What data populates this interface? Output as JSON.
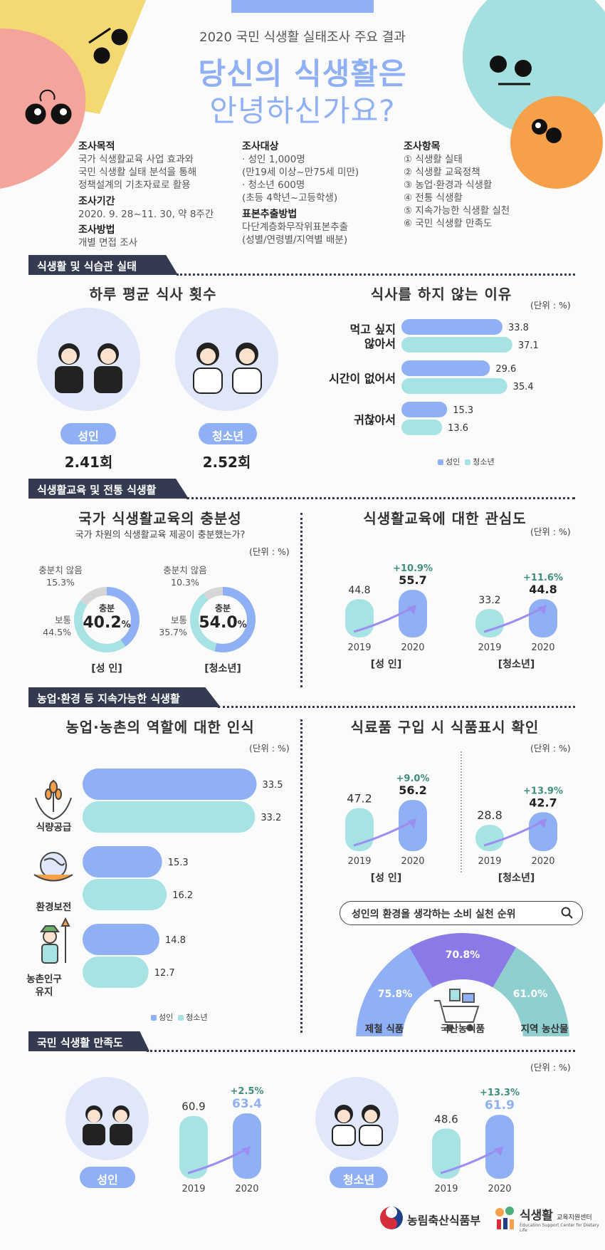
{
  "header": {
    "subtitle": "2020 국민 식생활 실태조사 주요 결과",
    "title_line1": "당신의 식생활은",
    "title_line2": "안녕하신가요?"
  },
  "info": {
    "purpose_h": "조사목적",
    "purpose_1": "국가 식생활교육 사업 효과와",
    "purpose_2": "국민 식생활 실태 분석을 통해",
    "purpose_3": "정책설계의 기초자료로 활용",
    "period_h": "조사기간",
    "period": "2020. 9. 28~11. 30, 약 8주간",
    "method_h": "조사방법",
    "method": "개별 면접 조사",
    "target_h": "조사대상",
    "target_1": "· 성인 1,000명",
    "target_2": "(만19세 이상~만75세 미만)",
    "target_3": "· 청소년 600명",
    "target_4": "(초등 4학년~고등학생)",
    "sampling_h": "표본추출방법",
    "sampling_1": "다단계층화무작위표본추출",
    "sampling_2": "(성별/연령별/지역별 배분)",
    "items_h": "조사항목",
    "items": [
      "① 식생활 실태",
      "② 식생활 교육정책",
      "③ 농업·환경과 식생활",
      "④ 전통 식생활",
      "⑤ 지속가능한 식생활 실천",
      "⑥ 국민 식생활 만족도"
    ]
  },
  "sections": {
    "s1": "식생활 및 식습관 실태",
    "s2": "식생활교육 및 전통 식생활",
    "s3": "농업·환경 등 지속가능한 식생활",
    "s4": "국민 식생활 만족도"
  },
  "unit": "(단위 : %)",
  "legend": {
    "adult": "성인",
    "youth": "청소년"
  },
  "meals": {
    "title": "하루 평균 식사 횟수",
    "adult_label": "성인",
    "adult_value": "2.41회",
    "youth_label": "청소년",
    "youth_value": "2.52회"
  },
  "edu_sufficiency": {
    "title": "국가 식생활교육의 충분성",
    "question": "국가 차원의 식생활교육 제공이 충분했는가?",
    "adult": {
      "group": "[성 인]",
      "insuf_label": "충분치 않음",
      "insuf": "15.3%",
      "normal_label": "보통",
      "normal": "44.5%",
      "suf_label": "충분",
      "suf": "40.2"
    },
    "youth": {
      "group": "[청소년]",
      "insuf_label": "충분치 않음",
      "insuf": "10.3%",
      "normal_label": "보통",
      "normal": "35.7%",
      "suf_label": "충분",
      "suf": "54.0"
    },
    "pct": "%"
  },
  "env_rank": {
    "title": "성인의 환경을 생각하는 소비 실천 순위",
    "items": [
      {
        "label": "제철 식품",
        "value": "75.8%"
      },
      {
        "label": "국산농식품",
        "value": "70.8%"
      },
      {
        "label": "지역 농산물",
        "value": "61.0%"
      }
    ]
  },
  "ag_roles": {
    "labels": [
      "식량공급",
      "환경보전",
      "농촌인구 유지"
    ]
  },
  "footer": {
    "ministry": "농림축산식품부",
    "center_main": "식생활",
    "center_sub": "교육지원센터",
    "center_en": "Education Support Center for Dietary Life"
  },
  "chart_data": [
    {
      "type": "bar",
      "id": "skip_reasons",
      "title": "식사를 하지 않는 이유",
      "categories": [
        "먹고 싶지 않아서",
        "시간이 없어서",
        "귀찮아서"
      ],
      "series": [
        {
          "name": "성인",
          "values": [
            33.8,
            29.6,
            15.3
          ]
        },
        {
          "name": "청소년",
          "values": [
            37.1,
            35.4,
            13.6
          ]
        }
      ],
      "orientation": "horizontal"
    },
    {
      "type": "bar",
      "id": "edu_interest",
      "title": "식생활교육에 대한 관심도",
      "groups": [
        {
          "name": "[성 인]",
          "categories": [
            "2019",
            "2020"
          ],
          "values": [
            44.8,
            55.7
          ],
          "change": "+10.9%"
        },
        {
          "name": "[청소년]",
          "categories": [
            "2019",
            "2020"
          ],
          "values": [
            33.2,
            44.8
          ],
          "change": "+11.6%"
        }
      ]
    },
    {
      "type": "bar",
      "id": "ag_roles",
      "title": "농업·농촌의 역할에 대한 인식",
      "categories": [
        "식량공급",
        "환경보전",
        "농촌인구 유지"
      ],
      "series": [
        {
          "name": "성인",
          "values": [
            33.5,
            15.3,
            14.8
          ]
        },
        {
          "name": "청소년",
          "values": [
            33.2,
            16.2,
            12.7
          ]
        }
      ],
      "orientation": "horizontal"
    },
    {
      "type": "bar",
      "id": "food_label",
      "title": "식료품 구입 시 식품표시 확인",
      "groups": [
        {
          "name": "[성 인]",
          "categories": [
            "2019",
            "2020"
          ],
          "values": [
            47.2,
            56.2
          ],
          "change": "+9.0%"
        },
        {
          "name": "[청소년]",
          "categories": [
            "2019",
            "2020"
          ],
          "values": [
            28.8,
            42.7
          ],
          "change": "+13.9%"
        }
      ]
    },
    {
      "type": "bar",
      "id": "satisfaction",
      "groups": [
        {
          "name": "성인",
          "categories": [
            "2019",
            "2020"
          ],
          "values": [
            60.9,
            63.4
          ],
          "change": "+2.5%"
        },
        {
          "name": "청소년",
          "categories": [
            "2019",
            "2020"
          ],
          "values": [
            48.6,
            61.9
          ],
          "change": "+13.3%"
        }
      ]
    }
  ]
}
